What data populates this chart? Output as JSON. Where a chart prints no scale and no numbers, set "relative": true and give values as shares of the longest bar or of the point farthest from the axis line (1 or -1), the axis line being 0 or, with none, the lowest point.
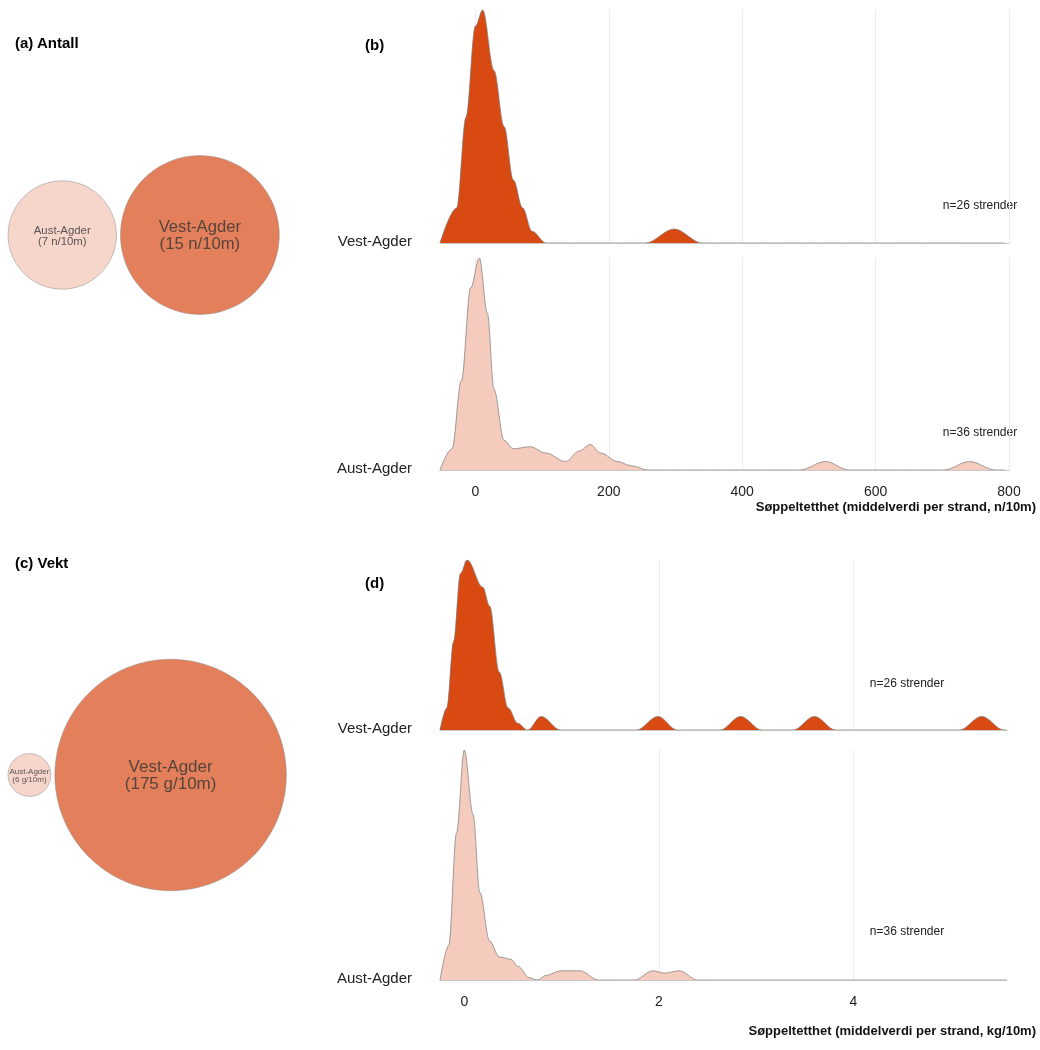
{
  "chart_data": [
    {
      "type": "other",
      "title": "(a) Antall",
      "categories": [
        "Aust-Agder",
        "Vest-Agder"
      ],
      "values": [
        7,
        15
      ],
      "colors": [
        "#f4cbbd",
        "#dc6032"
      ],
      "value_labels": [
        "(7 n/10m)",
        "(15 n/10m)"
      ]
    },
    {
      "type": "area",
      "title": "(b)",
      "relative": true,
      "xlim": [
        -53,
        800
      ],
      "xticks": [
        0,
        200,
        400,
        600,
        800
      ],
      "grid": "x",
      "tick_labels": false,
      "annotations": [
        "n=26 strender"
      ],
      "series": [
        {
          "name": "Vest-Agder",
          "color": "#d84a12",
          "x": [
            -53,
            -28,
            -14,
            0,
            11,
            28,
            43,
            57,
            71,
            85,
            106,
            113,
            255,
            298,
            340,
            794
          ],
          "values": [
            0,
            0.15,
            0.54,
            0.93,
            1,
            0.74,
            0.5,
            0.27,
            0.15,
            0.05,
            0,
            0,
            0,
            0.06,
            0,
            0
          ]
        }
      ]
    },
    {
      "type": "area",
      "xlabel": "Søppeltetthet (middelverdi per strand, n/10m)",
      "relative": true,
      "xlim": [
        -53,
        800
      ],
      "xticks": [
        0,
        200,
        400,
        600,
        800
      ],
      "grid": "x",
      "annotations": [
        "n=36 strender"
      ],
      "series": [
        {
          "name": "Aust-Agder",
          "color": "#f4cbbd",
          "x": [
            -53,
            -35,
            -21,
            -7,
            6,
            18,
            28,
            43,
            57,
            82,
            106,
            135,
            156,
            172,
            188,
            213,
            234,
            259,
            486,
            525,
            560,
            702,
            741,
            780,
            794
          ],
          "values": [
            0,
            0.1,
            0.42,
            0.86,
            1,
            0.74,
            0.38,
            0.14,
            0.1,
            0.11,
            0.08,
            0.04,
            0.09,
            0.12,
            0.08,
            0.04,
            0.02,
            0,
            0,
            0.04,
            0,
            0,
            0.04,
            0,
            0
          ]
        }
      ]
    },
    {
      "type": "other",
      "title": "(c) Vekt",
      "categories": [
        "Aust-Agder",
        "Vest-Agder"
      ],
      "values": [
        6,
        175
      ],
      "colors": [
        "#f4cbbd",
        "#dc6032"
      ],
      "value_labels": [
        "(6 g/10m)",
        "(175 g/10m)"
      ]
    },
    {
      "type": "area",
      "title": "(d)",
      "relative": true,
      "xlim": [
        -0.25,
        5.58
      ],
      "xticks": [
        0,
        2,
        4
      ],
      "grid": "x",
      "tick_labels": false,
      "annotations": [
        "n=26 strender"
      ],
      "series": [
        {
          "name": "Vest-Agder",
          "color": "#d84a12",
          "x": [
            -0.25,
            -0.18,
            -0.11,
            -0.04,
            0.03,
            0.19,
            0.26,
            0.36,
            0.45,
            0.55,
            0.65,
            0.79,
            0.99,
            1.77,
            1.99,
            2.19,
            2.63,
            2.84,
            3.06,
            3.38,
            3.6,
            3.82,
            5.09,
            5.32,
            5.55,
            5.58
          ],
          "values": [
            0,
            0.13,
            0.52,
            0.92,
            1,
            0.84,
            0.73,
            0.34,
            0.13,
            0.04,
            0,
            0.08,
            0,
            0,
            0.08,
            0,
            0,
            0.08,
            0,
            0,
            0.08,
            0,
            0,
            0.08,
            0,
            0
          ]
        }
      ]
    },
    {
      "type": "area",
      "xlabel": "Søppeltetthet (middelverdi per strand, kg/10m)",
      "relative": true,
      "xlim": [
        -0.25,
        5.58
      ],
      "xticks": [
        0,
        2,
        4
      ],
      "grid": "x",
      "annotations": [
        "n=36 strender"
      ],
      "series": [
        {
          "name": "Aust-Agder",
          "color": "#f4cbbd",
          "x": [
            -0.25,
            -0.16,
            -0.08,
            0,
            0.09,
            0.16,
            0.26,
            0.36,
            0.48,
            0.55,
            0.67,
            0.75,
            0.84,
            0.99,
            1.19,
            1.38,
            1.75,
            1.94,
            2.06,
            2.21,
            2.4,
            5.58
          ],
          "values": [
            0,
            0.15,
            0.64,
            1,
            0.72,
            0.38,
            0.17,
            0.1,
            0.09,
            0.06,
            0.01,
            0,
            0.02,
            0.04,
            0.04,
            0,
            0,
            0.04,
            0.03,
            0.04,
            0,
            0
          ]
        }
      ]
    }
  ]
}
